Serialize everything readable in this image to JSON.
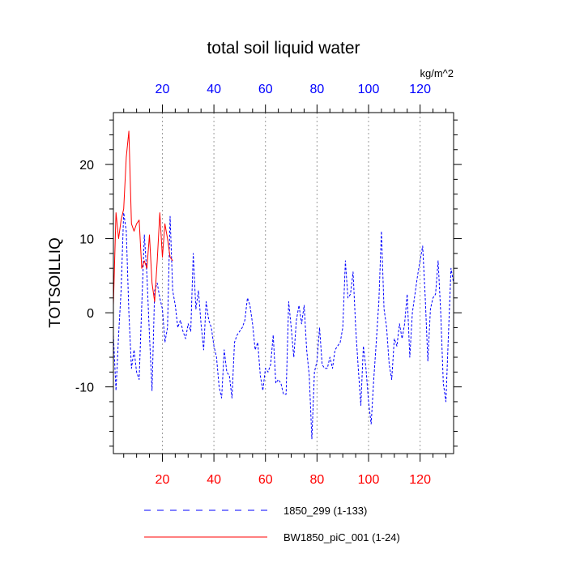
{
  "chart_data": {
    "type": "line",
    "title": "total soil liquid water",
    "ylabel": "TOTSOILLIQ",
    "xlabel": "",
    "units": "kg/m^2",
    "xlim": [
      1,
      133
    ],
    "ylim": [
      -19,
      27
    ],
    "x_ticks": [
      20,
      40,
      60,
      80,
      100,
      120
    ],
    "y_ticks": [
      -10,
      0,
      10,
      20
    ],
    "x_minor_step": 5,
    "y_minor_step": 2,
    "grid": "vertical-dotted",
    "legend_position": "bottom",
    "colors": {
      "bottom_ticks": "#ff0000",
      "top_ticks": "#0000ff"
    },
    "series": [
      {
        "name": "1850_299 (1-133)",
        "color": "#0000ff",
        "style": "dashed",
        "x_start": 1,
        "values": [
          -3,
          -10.5,
          -3,
          3,
          13.5,
          11,
          0,
          -7.5,
          -5,
          -8,
          -9,
          1,
          10.5,
          5,
          -3,
          -10.5,
          3,
          4,
          2,
          0.5,
          -4,
          -2,
          13,
          3,
          1,
          -2,
          -1,
          -2.5,
          -3.5,
          -1.5,
          -2.5,
          8,
          0.5,
          3,
          -1.5,
          -5,
          1.5,
          -1,
          -2,
          -4.5,
          -6,
          -10,
          -11.5,
          -5,
          -8,
          -8.5,
          -11.5,
          -4,
          -3,
          -2.5,
          -2,
          -1,
          2,
          1,
          -1.5,
          -5,
          -4,
          -8.5,
          -10.5,
          -7.5,
          -8,
          -7,
          -3,
          -9.5,
          -9,
          -9.5,
          -11,
          -11,
          1.5,
          -2,
          -6,
          -1,
          1,
          -1.5,
          1,
          -5,
          -8.5,
          -17,
          -8,
          -6.5,
          -2,
          -7,
          -7.5,
          -7.5,
          -6,
          -7.5,
          -5,
          -4.5,
          -4,
          -2,
          7,
          2,
          2.5,
          5.5,
          -2,
          -7.5,
          -12.5,
          -4.5,
          -7.5,
          -12,
          -15,
          -9,
          -4,
          1.5,
          11,
          0.5,
          -2,
          -7,
          -9,
          -3.5,
          -4.5,
          -1.5,
          -3.5,
          -1.5,
          2.5,
          -6,
          0,
          2.5,
          5,
          7,
          9,
          2,
          -6.5,
          0.5,
          2,
          2.5,
          7,
          0,
          -9.5,
          -12,
          -3,
          6,
          4
        ]
      },
      {
        "name": "BW1850_piC_001 (1-24)",
        "color": "#ff0000",
        "style": "solid",
        "x_start": 1,
        "values": [
          1,
          13.5,
          10,
          12.5,
          14,
          21,
          24.5,
          12,
          11,
          12,
          12.5,
          6,
          7,
          6,
          10.5,
          4,
          1.5,
          7,
          13.5,
          7.5,
          12,
          10,
          7.5,
          7
        ]
      }
    ]
  }
}
